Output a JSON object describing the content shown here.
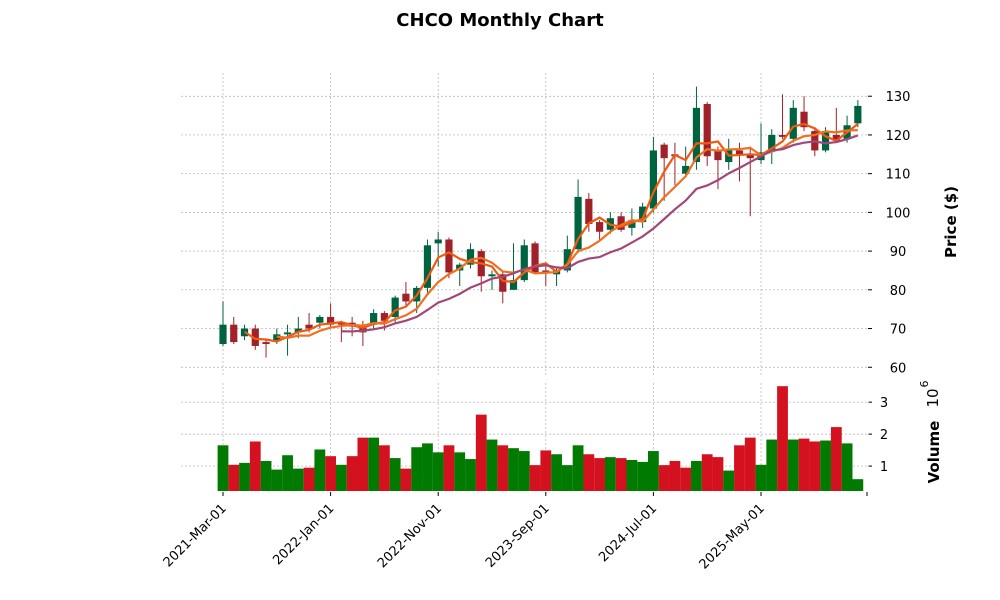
{
  "chart_data": {
    "type": "candlestick",
    "title": "CHCO Monthly Chart",
    "ylabel": "Price ($)",
    "volume_label": "Volume",
    "volume_exponent": "10",
    "volume_exponent_power": "6",
    "ylim": [
      58,
      136
    ],
    "volume_ylim": [
      0.22,
      3.6
    ],
    "yticks": [
      "60",
      "70",
      "80",
      "90",
      "100",
      "110",
      "120",
      "130"
    ],
    "volume_ticks": [
      "1",
      "2",
      "3"
    ],
    "xtick_labels": [
      "2021-Mar-01",
      "2022-Jan-01",
      "2022-Nov-01",
      "2023-Sep-01",
      "2024-Jul-01",
      "2025-May-01"
    ],
    "xtick_index": [
      0,
      10,
      20,
      30,
      40,
      50
    ],
    "moving_averages": [
      3,
      6,
      12
    ],
    "colors": {
      "up": "#006340",
      "down": "#a02128",
      "vol_up": "#007a00",
      "vol_down": "#d4111e",
      "ma": [
        "#f05a10",
        "#f07020",
        "#a0487a"
      ],
      "grid": "#b0b0b0"
    },
    "ohlc": [
      [
        66,
        77,
        65.5,
        71
      ],
      [
        71,
        73,
        66,
        66.5
      ],
      [
        68,
        71,
        67,
        70
      ],
      [
        70,
        71,
        64.5,
        65.5
      ],
      [
        66.5,
        67,
        62.5,
        66
      ],
      [
        67,
        70,
        66,
        68.5
      ],
      [
        68.5,
        71,
        63,
        69
      ],
      [
        69,
        73,
        67.5,
        70
      ],
      [
        71,
        74,
        69,
        70
      ],
      [
        71.5,
        73.5,
        70,
        73
      ],
      [
        73,
        76.5,
        70,
        71
      ],
      [
        71.5,
        72,
        66.5,
        71
      ],
      [
        71.5,
        73,
        68,
        70.5
      ],
      [
        71,
        72,
        65.5,
        69
      ],
      [
        71,
        75,
        70,
        74
      ],
      [
        74,
        74.5,
        69.5,
        72
      ],
      [
        73,
        78.5,
        71.5,
        78
      ],
      [
        79,
        82,
        76,
        77
      ],
      [
        77,
        81,
        74,
        80.5
      ],
      [
        80.5,
        93,
        79,
        91.5
      ],
      [
        92,
        95,
        86,
        93
      ],
      [
        93,
        93.5,
        83,
        84.5
      ],
      [
        85,
        87,
        81,
        86.5
      ],
      [
        86.5,
        92,
        85.5,
        90.5
      ],
      [
        90,
        90.5,
        79.5,
        83.5
      ],
      [
        83.5,
        85,
        80,
        84
      ],
      [
        84,
        85,
        76.5,
        79.5
      ],
      [
        80,
        92,
        80,
        82.5
      ],
      [
        82.5,
        93,
        82,
        91.5
      ],
      [
        92,
        92.5,
        84,
        84.5
      ],
      [
        85,
        86.5,
        81,
        84.5
      ],
      [
        84,
        86,
        81,
        85
      ],
      [
        85,
        94,
        84.5,
        90.5
      ],
      [
        90.5,
        108.5,
        89.5,
        104
      ],
      [
        103.5,
        105,
        95,
        97
      ],
      [
        97.5,
        98,
        93,
        95
      ],
      [
        95.5,
        100,
        94.5,
        98.5
      ],
      [
        99,
        100,
        95,
        95.5
      ],
      [
        96,
        101,
        94,
        98
      ],
      [
        97.5,
        102.5,
        96,
        101.5
      ],
      [
        101,
        119.5,
        100,
        116
      ],
      [
        117.5,
        118,
        103,
        114
      ],
      [
        115,
        118,
        107,
        114.5
      ],
      [
        110,
        117,
        109,
        112
      ],
      [
        113,
        132.5,
        111,
        127
      ],
      [
        128,
        128.5,
        112,
        114.5
      ],
      [
        116,
        117,
        106,
        113.5
      ],
      [
        113,
        119,
        111,
        116
      ],
      [
        116,
        118,
        108,
        115
      ],
      [
        115,
        117,
        99,
        114
      ],
      [
        113.5,
        123,
        112.5,
        115.5
      ],
      [
        116,
        121.5,
        112.5,
        120
      ],
      [
        120,
        130.5,
        119,
        119.5
      ],
      [
        119,
        129,
        118,
        127
      ],
      [
        126,
        130,
        121,
        122
      ],
      [
        121,
        122,
        114.5,
        116
      ],
      [
        116,
        122,
        115.5,
        121
      ],
      [
        120,
        127,
        118,
        118.5
      ],
      [
        119,
        125,
        118,
        122.5
      ],
      [
        123,
        129,
        122,
        127.5
      ]
    ],
    "volume": [
      1.65,
      1.04,
      1.1,
      1.77,
      1.16,
      0.89,
      1.34,
      0.92,
      0.95,
      1.52,
      1.31,
      1.04,
      1.31,
      1.89,
      1.89,
      1.65,
      1.25,
      0.92,
      1.59,
      1.71,
      1.43,
      1.65,
      1.43,
      1.22,
      2.61,
      1.83,
      1.65,
      1.56,
      1.47,
      1.03,
      1.49,
      1.37,
      1.03,
      1.65,
      1.37,
      1.25,
      1.28,
      1.25,
      1.19,
      1.13,
      1.47,
      1.03,
      1.16,
      0.95,
      1.16,
      1.37,
      1.28,
      0.86,
      1.65,
      1.89,
      1.04,
      1.83,
      3.5,
      1.83,
      1.86,
      1.77,
      1.8,
      2.22,
      1.71,
      0.59
    ],
    "volume_direction": [
      "u",
      "d",
      "u",
      "d",
      "u",
      "u",
      "u",
      "u",
      "d",
      "u",
      "d",
      "u",
      "d",
      "d",
      "u",
      "d",
      "u",
      "d",
      "u",
      "u",
      "u",
      "d",
      "u",
      "u",
      "d",
      "u",
      "d",
      "u",
      "u",
      "d",
      "d",
      "u",
      "u",
      "u",
      "d",
      "d",
      "u",
      "d",
      "u",
      "u",
      "u",
      "d",
      "d",
      "d",
      "u",
      "d",
      "d",
      "u",
      "d",
      "d",
      "u",
      "u",
      "d",
      "u",
      "d",
      "d",
      "u",
      "d",
      "u",
      "u"
    ]
  }
}
